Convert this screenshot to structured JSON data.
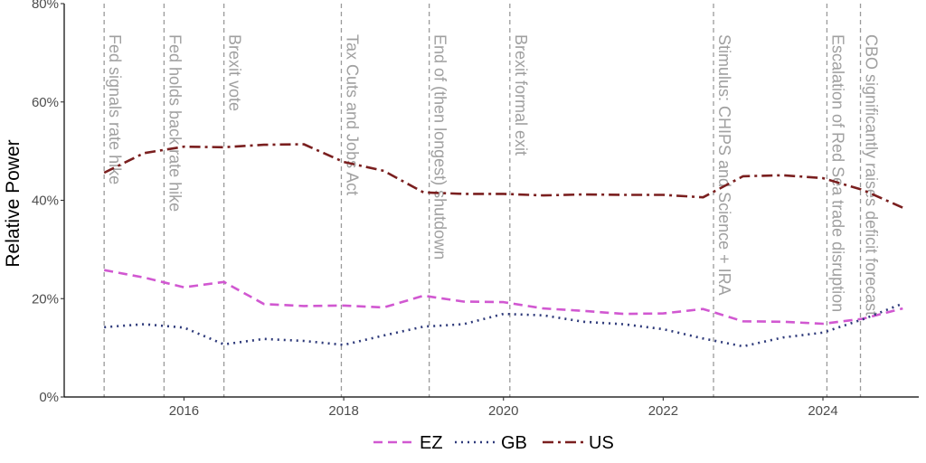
{
  "chart_data": {
    "type": "line",
    "title": "",
    "xlabel": "",
    "ylabel": "Relative Power",
    "xlim": [
      2014.5,
      2025.2
    ],
    "ylim": [
      0,
      80
    ],
    "x_ticks": [
      2016,
      2018,
      2020,
      2022,
      2024
    ],
    "y_ticks": [
      0,
      20,
      40,
      60,
      80
    ],
    "y_tick_labels": [
      "0%",
      "20%",
      "40%",
      "60%",
      "80%"
    ],
    "grid": false,
    "legend_position": "bottom",
    "events": [
      {
        "x": 2015.0,
        "label": "Fed signals rate hike"
      },
      {
        "x": 2015.75,
        "label": "Fed holds back rate hike"
      },
      {
        "x": 2016.5,
        "label": "Brexit vote"
      },
      {
        "x": 2017.97,
        "label": "Tax Cuts and Jobs Act"
      },
      {
        "x": 2019.07,
        "label": "End of (then longest) shutdown"
      },
      {
        "x": 2020.08,
        "label": "Brexit formal exit"
      },
      {
        "x": 2022.63,
        "label": "Stimulus: CHIPS and Science + IRA"
      },
      {
        "x": 2024.05,
        "label": "Escalation of Red Sea trade disruption"
      },
      {
        "x": 2024.47,
        "label": "CBO significantly raises deficit forecast"
      }
    ],
    "series": [
      {
        "name": "EZ",
        "color": "#d158d1",
        "dash": "dashed",
        "x": [
          2015.0,
          2015.5,
          2016.0,
          2016.5,
          2017.0,
          2017.5,
          2018.0,
          2018.5,
          2019.0,
          2019.5,
          2020.0,
          2020.5,
          2021.0,
          2021.5,
          2022.0,
          2022.5,
          2023.0,
          2023.5,
          2024.0,
          2024.5,
          2025.0
        ],
        "values": [
          25.8,
          24.3,
          22.3,
          23.4,
          18.9,
          18.5,
          18.6,
          18.2,
          20.6,
          19.4,
          19.3,
          18.0,
          17.5,
          16.9,
          17.0,
          17.9,
          15.4,
          15.3,
          14.9,
          15.9,
          18.0
        ]
      },
      {
        "name": "GB",
        "color": "#2e3a7a",
        "dash": "dotted",
        "x": [
          2015.0,
          2015.5,
          2016.0,
          2016.5,
          2017.0,
          2017.5,
          2018.0,
          2018.5,
          2019.0,
          2019.5,
          2020.0,
          2020.5,
          2021.0,
          2021.5,
          2022.0,
          2022.5,
          2023.0,
          2023.5,
          2024.0,
          2024.5,
          2025.0
        ],
        "values": [
          14.2,
          14.8,
          14.1,
          10.7,
          11.8,
          11.4,
          10.6,
          12.5,
          14.3,
          14.8,
          16.9,
          16.6,
          15.3,
          14.8,
          13.8,
          11.9,
          10.3,
          12.1,
          13.1,
          15.8,
          19.0
        ]
      },
      {
        "name": "US",
        "color": "#7a1f1f",
        "dash": "dashdot",
        "x": [
          2015.0,
          2015.5,
          2016.0,
          2016.5,
          2017.0,
          2017.5,
          2018.0,
          2018.5,
          2019.0,
          2019.5,
          2020.0,
          2020.5,
          2021.0,
          2021.5,
          2022.0,
          2022.5,
          2023.0,
          2023.5,
          2024.0,
          2024.5,
          2025.0
        ],
        "values": [
          45.6,
          49.6,
          50.9,
          50.8,
          51.3,
          51.4,
          47.8,
          46.0,
          41.6,
          41.3,
          41.3,
          41.0,
          41.2,
          41.1,
          41.1,
          40.6,
          44.9,
          45.1,
          44.5,
          42.1,
          38.5
        ]
      }
    ]
  }
}
